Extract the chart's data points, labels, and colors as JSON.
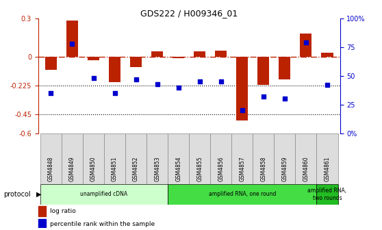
{
  "title": "GDS222 / H009346_01",
  "samples": [
    "GSM4848",
    "GSM4849",
    "GSM4850",
    "GSM4851",
    "GSM4852",
    "GSM4853",
    "GSM4854",
    "GSM4855",
    "GSM4856",
    "GSM4857",
    "GSM4858",
    "GSM4859",
    "GSM4860",
    "GSM4861"
  ],
  "log_ratio": [
    -0.1,
    0.285,
    -0.03,
    -0.2,
    -0.08,
    0.04,
    -0.01,
    0.04,
    0.05,
    -0.5,
    -0.22,
    -0.18,
    0.18,
    0.03
  ],
  "percentile": [
    35,
    78,
    48,
    35,
    47,
    43,
    40,
    45,
    45,
    20,
    32,
    30,
    79,
    42
  ],
  "ylim_left": [
    -0.6,
    0.3
  ],
  "ylim_right": [
    0,
    100
  ],
  "yticks_left": [
    -0.6,
    -0.45,
    -0.225,
    0.0,
    0.3
  ],
  "ytick_labels_left": [
    "-0.6",
    "-0.45",
    "-0.225",
    "0",
    "0.3"
  ],
  "yticks_right": [
    0,
    25,
    50,
    75,
    100
  ],
  "ytick_labels_right": [
    "0%",
    "25",
    "50",
    "75",
    "100%"
  ],
  "hlines": [
    -0.225,
    -0.45
  ],
  "zero_line": 0.0,
  "bar_color": "#bb2200",
  "dot_color": "#0000cc",
  "protocol_groups": [
    {
      "label": "unamplified cDNA",
      "start": 0,
      "end": 5,
      "color": "#ccffcc"
    },
    {
      "label": "amplified RNA, one round",
      "start": 6,
      "end": 12,
      "color": "#44dd44"
    },
    {
      "label": "amplified RNA,\ntwo rounds",
      "start": 13,
      "end": 13,
      "color": "#22bb22"
    }
  ],
  "protocol_label": "protocol",
  "legend_items": [
    {
      "label": "log ratio",
      "color": "#bb2200"
    },
    {
      "label": "percentile rank within the sample",
      "color": "#0000cc"
    }
  ],
  "bar_width": 0.55
}
